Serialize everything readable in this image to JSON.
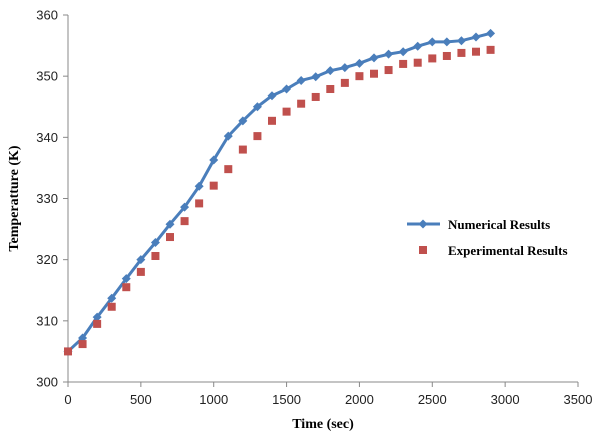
{
  "chart_data": {
    "type": "line",
    "xlabel": "Time (sec)",
    "ylabel": "Temperatture (K)",
    "xlim": [
      0,
      3500
    ],
    "ylim": [
      300,
      360
    ],
    "xticks": [
      0,
      500,
      1000,
      1500,
      2000,
      2500,
      3000,
      3500
    ],
    "yticks": [
      300,
      310,
      320,
      330,
      340,
      350,
      360
    ],
    "grid": false,
    "legend_position": "right",
    "series": [
      {
        "name": "Numerical Results",
        "style": "line-diamond",
        "color": "#4A7EBB",
        "x": [
          0,
          100,
          200,
          300,
          400,
          500,
          600,
          700,
          800,
          900,
          1000,
          1100,
          1200,
          1300,
          1400,
          1500,
          1600,
          1700,
          1800,
          1900,
          2000,
          2100,
          2200,
          2300,
          2400,
          2500,
          2600,
          2700,
          2800,
          2900
        ],
        "y": [
          305.0,
          307.2,
          310.6,
          313.7,
          316.9,
          320.0,
          322.8,
          325.8,
          328.6,
          332.0,
          336.3,
          340.2,
          342.7,
          345.0,
          346.8,
          347.9,
          349.3,
          349.9,
          350.9,
          351.4,
          352.1,
          353.0,
          353.6,
          354.0,
          354.9,
          355.6,
          355.6,
          355.8,
          356.4,
          357.0
        ]
      },
      {
        "name": "Experimental Results",
        "style": "marker-square",
        "color": "#C0504D",
        "x": [
          0,
          100,
          200,
          300,
          400,
          500,
          600,
          700,
          800,
          900,
          1000,
          1100,
          1200,
          1300,
          1400,
          1500,
          1600,
          1700,
          1800,
          1900,
          2000,
          2100,
          2200,
          2300,
          2400,
          2500,
          2600,
          2700,
          2800,
          2900
        ],
        "y": [
          305.0,
          306.2,
          309.5,
          312.3,
          315.5,
          318.0,
          320.6,
          323.7,
          326.3,
          329.2,
          332.1,
          334.8,
          338.0,
          340.2,
          342.7,
          344.2,
          345.5,
          346.6,
          347.9,
          348.9,
          350.0,
          350.4,
          351.0,
          352.0,
          352.2,
          352.9,
          353.3,
          353.8,
          354.0,
          354.3
        ]
      }
    ]
  }
}
